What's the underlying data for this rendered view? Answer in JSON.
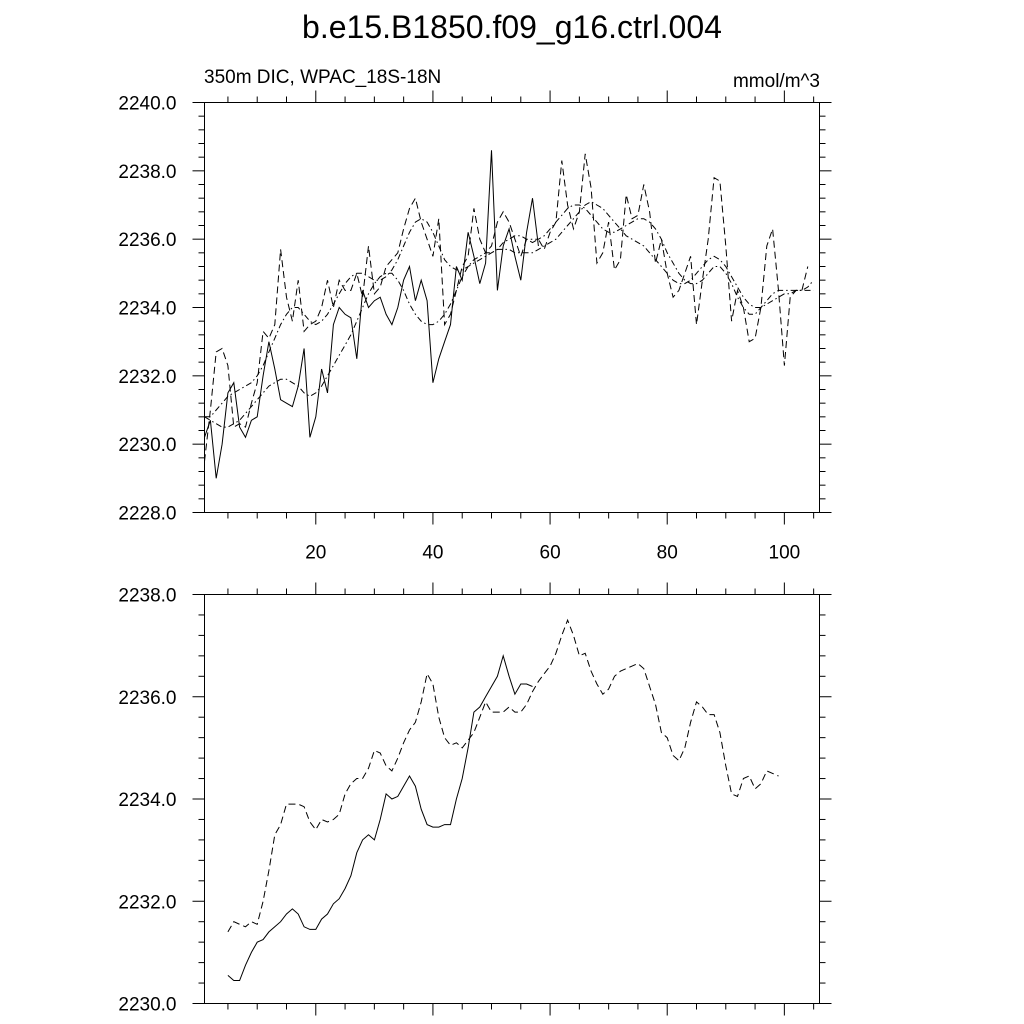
{
  "title": "b.e15.B1850.f09_g16.ctrl.004",
  "chart_data": [
    {
      "type": "line",
      "left_label": "350m DIC, WPAC_18S-18N",
      "right_label": "mmol/m^3",
      "xlim": [
        1,
        106
      ],
      "ylim": [
        2228,
        2240
      ],
      "xticks": [
        20,
        40,
        60,
        80,
        100
      ],
      "yticks": [
        2228,
        2230,
        2232,
        2234,
        2236,
        2238,
        2240
      ],
      "xtick_labels": [
        "20",
        "40",
        "60",
        "80",
        "100"
      ],
      "ytick_labels": [
        "2228.0",
        "2230.0",
        "2232.0",
        "2234.0",
        "2236.0",
        "2238.0",
        "2240.0"
      ],
      "grid": false,
      "series": [
        {
          "style": "solid",
          "x0": 1,
          "values": [
            2230.2,
            2230.7,
            2229.0,
            2230.0,
            2231.5,
            2231.8,
            2230.5,
            2230.2,
            2230.7,
            2230.8,
            2232.0,
            2233.0,
            2232.2,
            2231.3,
            2231.2,
            2231.1,
            2231.7,
            2232.8,
            2230.2,
            2230.8,
            2232.2,
            2231.5,
            2233.5,
            2234.0,
            2233.8,
            2233.7,
            2232.5,
            2234.5,
            2234.0,
            2234.2,
            2234.3,
            2233.8,
            2233.5,
            2234.0,
            2234.8,
            2235.2,
            2234.2,
            2234.8,
            2234.2,
            2231.8,
            2232.5,
            2233.0,
            2233.5,
            2235.2,
            2234.8,
            2236.2,
            2235.5,
            2234.7,
            2235.3,
            2238.6,
            2234.5,
            2235.8,
            2236.3,
            2235.5,
            2234.8,
            2236.2,
            2237.2,
            2235.8
          ]
        },
        {
          "style": "dashed",
          "x0": 1,
          "values": [
            2229.5,
            2231.0,
            2232.7,
            2232.8,
            2232.3,
            2230.5,
            2230.6,
            2230.5,
            2231.2,
            2231.8,
            2233.3,
            2233.1,
            2233.5,
            2235.7,
            2234.3,
            2233.6,
            2234.8,
            2233.3,
            2233.5,
            2233.6,
            2234.0,
            2234.8,
            2234.0,
            2234.8,
            2234.5,
            2234.5,
            2235.0,
            2234.3,
            2235.8,
            2234.4,
            2234.6,
            2235.2,
            2235.4,
            2235.6,
            2236.3,
            2236.9,
            2237.2,
            2236.5,
            2236.0,
            2235.5,
            2236.6,
            2233.5,
            2233.8,
            2234.5,
            2235.2,
            2235.5,
            2236.9,
            2236.0,
            2235.6,
            2235.8,
            2236.5,
            2236.8,
            2236.5,
            2236.0,
            2235.5,
            2236.0,
            2235.9,
            2236.0,
            2235.7,
            2236.2,
            2236.5,
            2238.3,
            2237.0,
            2236.3,
            2236.8,
            2238.5,
            2237.5,
            2235.3,
            2235.6,
            2236.5,
            2235.1,
            2235.4,
            2237.3,
            2236.6,
            2236.7,
            2237.6,
            2236.8,
            2235.3,
            2236.0,
            2235.0,
            2234.3,
            2234.5,
            2235.0,
            2235.5,
            2233.5,
            2234.8,
            2236.0,
            2237.8,
            2237.7,
            2235.8,
            2233.6,
            2234.5,
            2234.0,
            2233.0,
            2233.1,
            2234.0,
            2235.8,
            2236.3,
            2234.5,
            2232.3,
            2234.3,
            2234.5,
            2234.5,
            2235.2
          ]
        },
        {
          "style": "dashdot",
          "x0": 1,
          "values": [
            2230.8,
            2230.7,
            2230.6,
            2230.5,
            2230.5,
            2230.6,
            2230.7,
            2230.9,
            2231.1,
            2231.3,
            2231.5,
            2231.7,
            2231.8,
            2231.9,
            2231.9,
            2231.8,
            2231.7,
            2231.5,
            2231.4,
            2231.5,
            2231.7,
            2232.0,
            2232.3,
            2232.6,
            2232.9,
            2233.2,
            2233.6,
            2234.0,
            2234.4,
            2234.7,
            2234.9,
            2235.0,
            2235.0,
            2234.8,
            2234.5,
            2234.1,
            2233.8,
            2233.6,
            2233.5,
            2233.5,
            2233.6,
            2233.8,
            2234.1,
            2234.5,
            2234.9,
            2235.2,
            2235.4,
            2235.5,
            2235.6,
            2235.6,
            2235.7,
            2235.7,
            2235.7,
            2235.6,
            2235.6,
            2235.6,
            2235.6,
            2235.7,
            2235.8,
            2235.9,
            2236.0,
            2236.2,
            2236.4,
            2236.6,
            2236.8,
            2237.0,
            2237.1,
            2237.0,
            2236.9,
            2236.7,
            2236.5,
            2236.3,
            2236.1,
            2236.0,
            2235.9,
            2235.8,
            2235.6,
            2235.4,
            2235.2,
            2235.0,
            2234.8,
            2234.7,
            2234.7,
            2234.8,
            2235.0,
            2235.2,
            2235.4,
            2235.5,
            2235.4,
            2235.2,
            2234.9,
            2234.6,
            2234.3,
            2234.1,
            2234.0,
            2234.0,
            2234.1,
            2234.2,
            2234.3,
            2234.4,
            2234.4,
            2234.5,
            2234.5,
            2234.5,
            2234.5
          ]
        },
        {
          "style": "dashdot",
          "x0": 1,
          "values": [
            2230.8,
            2230.8,
            2231.0,
            2231.2,
            2231.4,
            2231.5,
            2231.6,
            2231.7,
            2231.8,
            2232.0,
            2232.3,
            2232.7,
            2233.1,
            2233.5,
            2233.8,
            2234.0,
            2234.0,
            2233.8,
            2233.6,
            2233.5,
            2233.6,
            2233.8,
            2234.1,
            2234.4,
            2234.7,
            2234.9,
            2235.0,
            2235.0,
            2234.9,
            2234.8,
            2234.8,
            2234.9,
            2235.1,
            2235.4,
            2235.8,
            2236.2,
            2236.5,
            2236.6,
            2236.5,
            2236.2,
            2235.8,
            2235.4,
            2235.2,
            2235.1,
            2235.1,
            2235.2,
            2235.3,
            2235.4,
            2235.5,
            2235.6,
            2235.7,
            2235.9,
            2236.0,
            2236.1,
            2236.1,
            2236.0,
            2236.0,
            2236.0,
            2236.1,
            2236.3,
            2236.5,
            2236.7,
            2236.9,
            2237.0,
            2237.0,
            2236.9,
            2236.7,
            2236.5,
            2236.3,
            2236.2,
            2236.2,
            2236.3,
            2236.4,
            2236.5,
            2236.6,
            2236.6,
            2236.5,
            2236.3,
            2236.0,
            2235.6,
            2235.3,
            2235.0,
            2234.8,
            2234.7,
            2234.7,
            2234.8,
            2235.0,
            2235.2,
            2235.2,
            2235.0,
            2234.7,
            2234.3,
            2234.0,
            2233.8,
            2233.8,
            2234.0,
            2234.2,
            2234.4,
            2234.5,
            2234.5,
            2234.5,
            2234.5,
            2234.5,
            2234.6,
            2234.8
          ]
        }
      ]
    },
    {
      "type": "line",
      "xlim": [
        1,
        106
      ],
      "ylim": [
        2230,
        2238
      ],
      "xticks": [
        20,
        40,
        60,
        80,
        100
      ],
      "yticks": [
        2230,
        2232,
        2234,
        2236,
        2238
      ],
      "ytick_labels": [
        "2230.0",
        "2232.0",
        "2234.0",
        "2236.0",
        "2238.0"
      ],
      "grid": false,
      "series": [
        {
          "style": "solid",
          "x0": 5,
          "values": [
            2230.55,
            2230.45,
            2230.45,
            2230.75,
            2231.0,
            2231.2,
            2231.25,
            2231.4,
            2231.5,
            2231.6,
            2231.75,
            2231.85,
            2231.75,
            2231.5,
            2231.45,
            2231.45,
            2231.65,
            2231.75,
            2231.95,
            2232.05,
            2232.25,
            2232.5,
            2232.95,
            2233.2,
            2233.3,
            2233.2,
            2233.6,
            2234.1,
            2234.0,
            2234.05,
            2234.25,
            2234.45,
            2234.25,
            2233.8,
            2233.5,
            2233.45,
            2233.45,
            2233.5,
            2233.5,
            2234.0,
            2234.4,
            2235.0,
            2235.7,
            2235.8,
            2236.0,
            2236.2,
            2236.4,
            2236.8,
            2236.4,
            2236.05,
            2236.25,
            2236.25,
            2236.2
          ]
        },
        {
          "style": "dashed",
          "x0": 5,
          "values": [
            2231.4,
            2231.6,
            2231.55,
            2231.5,
            2231.6,
            2231.55,
            2232.0,
            2232.6,
            2233.3,
            2233.5,
            2233.9,
            2233.9,
            2233.9,
            2233.85,
            2233.55,
            2233.4,
            2233.6,
            2233.55,
            2233.6,
            2233.7,
            2234.1,
            2234.3,
            2234.4,
            2234.4,
            2234.6,
            2234.95,
            2234.9,
            2234.65,
            2234.55,
            2234.8,
            2235.1,
            2235.35,
            2235.5,
            2235.9,
            2236.45,
            2236.25,
            2235.6,
            2235.2,
            2235.05,
            2235.1,
            2235.0,
            2235.15,
            2235.3,
            2235.6,
            2235.9,
            2235.7,
            2235.7,
            2235.7,
            2235.8,
            2235.7,
            2235.7,
            2235.85,
            2236.1,
            2236.3,
            2236.45,
            2236.6,
            2236.85,
            2237.2,
            2237.5,
            2237.2,
            2236.8,
            2236.85,
            2236.5,
            2236.25,
            2236.05,
            2236.15,
            2236.4,
            2236.5,
            2236.55,
            2236.6,
            2236.65,
            2236.55,
            2236.2,
            2235.85,
            2235.3,
            2235.2,
            2234.85,
            2234.75,
            2235.0,
            2235.5,
            2235.9,
            2235.8,
            2235.65,
            2235.65,
            2235.3,
            2234.65,
            2234.1,
            2234.05,
            2234.4,
            2234.45,
            2234.2,
            2234.3,
            2234.55,
            2234.5,
            2234.45
          ]
        }
      ]
    }
  ]
}
